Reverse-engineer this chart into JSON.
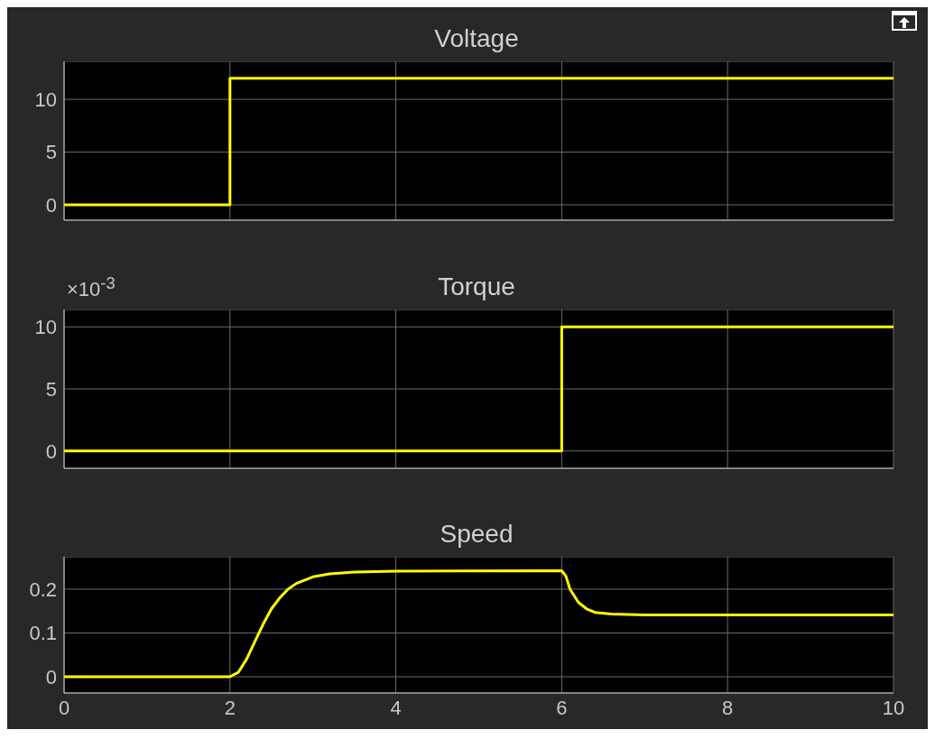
{
  "chart_data": [
    {
      "type": "step",
      "title": "Voltage",
      "x": [
        0,
        2,
        10
      ],
      "values": [
        0,
        12,
        12
      ],
      "color": "#ffff00",
      "xlim": [
        0,
        10
      ],
      "xticks": [
        0,
        2,
        4,
        6,
        8,
        10
      ],
      "ylim": [
        -1.45,
        13.6
      ],
      "yticks": [
        0,
        5,
        10
      ],
      "grid": true,
      "tick_labels": "y"
    },
    {
      "type": "step",
      "title": "Torque",
      "annotations": [
        "×10$^{-3}$"
      ],
      "x": [
        0,
        6,
        10
      ],
      "values": [
        0,
        10,
        10
      ],
      "color": "#ffff00",
      "xlim": [
        0,
        10
      ],
      "xticks": [
        0,
        2,
        4,
        6,
        8,
        10
      ],
      "ylim": [
        -1.4,
        11.4
      ],
      "yticks": [
        0,
        5,
        10
      ],
      "grid": true,
      "tick_labels": "y"
    },
    {
      "type": "line",
      "title": "Speed",
      "x": [
        0,
        2,
        2.1,
        2.2,
        2.3,
        2.4,
        2.5,
        2.6,
        2.7,
        2.8,
        3,
        3.2,
        3.5,
        4,
        6,
        6.05,
        6.1,
        6.2,
        6.3,
        6.4,
        6.6,
        7,
        10
      ],
      "values": [
        0,
        0,
        0.01,
        0.04,
        0.08,
        0.12,
        0.155,
        0.18,
        0.2,
        0.213,
        0.228,
        0.235,
        0.239,
        0.241,
        0.242,
        0.23,
        0.2,
        0.17,
        0.155,
        0.147,
        0.143,
        0.141,
        0.141
      ],
      "color": "#ffff00",
      "xlim": [
        0,
        10
      ],
      "xticks": [
        0,
        2,
        4,
        6,
        8,
        10
      ],
      "ylim": [
        -0.037,
        0.274
      ],
      "yticks": [
        0,
        0.1,
        0.2
      ],
      "grid": true
    }
  ]
}
